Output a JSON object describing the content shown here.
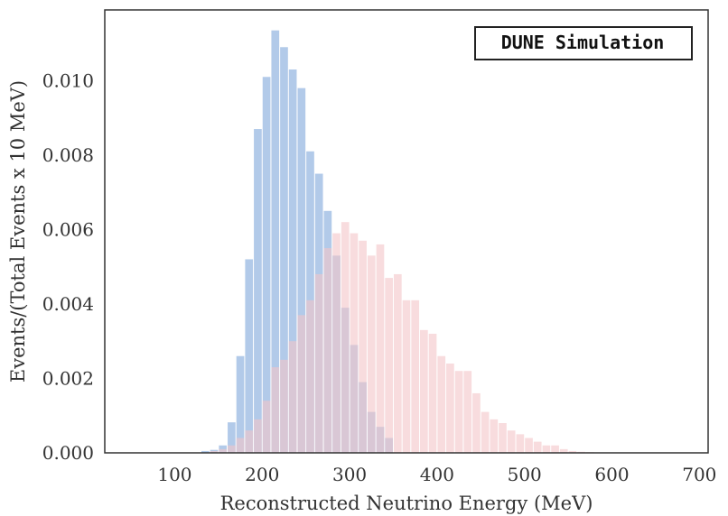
{
  "chart_data": {
    "type": "histogram",
    "xlabel": "Reconstructed Neutrino Energy (MeV)",
    "ylabel": "Events/(Total Events x 10 MeV)",
    "xlim": [
      20,
      710
    ],
    "ylim": [
      0,
      0.0119
    ],
    "xticks": [
      100,
      200,
      300,
      400,
      500,
      600,
      700
    ],
    "yticks": [
      0.0,
      0.002,
      0.004,
      0.006,
      0.008,
      0.01
    ],
    "ytick_labels": [
      "0.000",
      "0.002",
      "0.004",
      "0.006",
      "0.008",
      "0.010"
    ],
    "xtick_labels": [
      "100",
      "200",
      "300",
      "400",
      "500",
      "600",
      "700"
    ],
    "bin_width": 10,
    "annotation": "DUNE Simulation",
    "grid": false,
    "series": [
      {
        "color": "#aec7e8",
        "bins": [
          [
            130,
            5e-05
          ],
          [
            140,
            8e-05
          ],
          [
            150,
            0.0002
          ],
          [
            160,
            0.00082
          ],
          [
            170,
            0.0026
          ],
          [
            180,
            0.0052
          ],
          [
            190,
            0.0087
          ],
          [
            200,
            0.0101
          ],
          [
            210,
            0.01135
          ],
          [
            220,
            0.0109
          ],
          [
            230,
            0.0103
          ],
          [
            240,
            0.0098
          ],
          [
            250,
            0.0081
          ],
          [
            260,
            0.0075
          ],
          [
            270,
            0.0065
          ],
          [
            280,
            0.0053
          ],
          [
            290,
            0.0039
          ],
          [
            300,
            0.0029
          ],
          [
            310,
            0.0019
          ],
          [
            320,
            0.0011
          ],
          [
            330,
            0.0007
          ],
          [
            340,
            0.0004
          ]
        ]
      },
      {
        "color": "#f4c4c8",
        "bins": [
          [
            140,
            5e-05
          ],
          [
            150,
            0.0001
          ],
          [
            160,
            0.0002
          ],
          [
            170,
            0.0004
          ],
          [
            180,
            0.0006
          ],
          [
            190,
            0.0009
          ],
          [
            200,
            0.0014
          ],
          [
            210,
            0.0023
          ],
          [
            220,
            0.0025
          ],
          [
            230,
            0.003
          ],
          [
            240,
            0.0037
          ],
          [
            250,
            0.0041
          ],
          [
            260,
            0.0048
          ],
          [
            270,
            0.0055
          ],
          [
            280,
            0.0059
          ],
          [
            290,
            0.0062
          ],
          [
            300,
            0.0059
          ],
          [
            310,
            0.0057
          ],
          [
            320,
            0.0053
          ],
          [
            330,
            0.0056
          ],
          [
            340,
            0.0047
          ],
          [
            350,
            0.0048
          ],
          [
            360,
            0.0041
          ],
          [
            370,
            0.0041
          ],
          [
            380,
            0.0033
          ],
          [
            390,
            0.0032
          ],
          [
            400,
            0.0026
          ],
          [
            410,
            0.0024
          ],
          [
            420,
            0.0022
          ],
          [
            430,
            0.0022
          ],
          [
            440,
            0.0016
          ],
          [
            450,
            0.0011
          ],
          [
            460,
            0.0009
          ],
          [
            470,
            0.0008
          ],
          [
            480,
            0.0006
          ],
          [
            490,
            0.0005
          ],
          [
            500,
            0.0004
          ],
          [
            510,
            0.0003
          ],
          [
            520,
            0.0002
          ],
          [
            530,
            0.0002
          ],
          [
            540,
            0.0001
          ],
          [
            550,
            5e-05
          ],
          [
            560,
            3e-05
          ],
          [
            570,
            2e-05
          ]
        ]
      }
    ]
  }
}
